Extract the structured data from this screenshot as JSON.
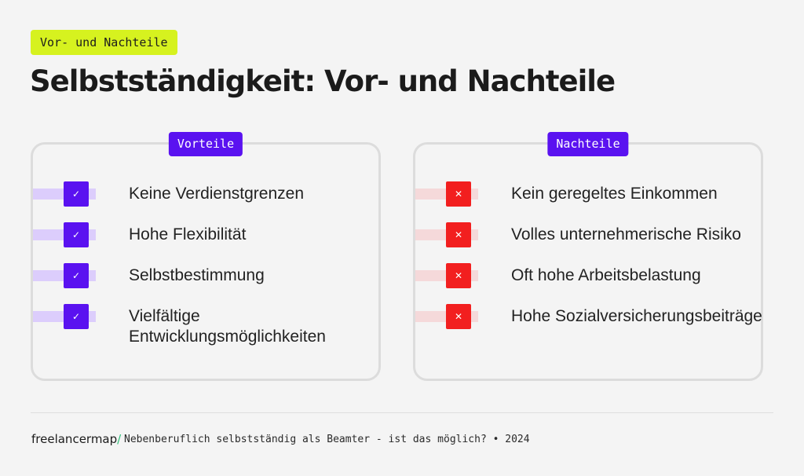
{
  "tag": "Vor- und Nachteile",
  "title": "Selbstständigkeit: Vor- und Nachteile",
  "pros": {
    "label": "Vorteile",
    "items": [
      "Keine Verdienstgrenzen",
      "Hohe Flexibilität",
      "Selbstbestimmung",
      "Vielfältige Entwicklungsmöglichkeiten"
    ]
  },
  "cons": {
    "label": "Nachteile",
    "items": [
      "Kein geregeltes Einkommen",
      "Volles unternehmerische Risiko",
      "Oft hohe Arbeitsbelastung",
      "Hohe Sozialversicherungsbeiträge"
    ]
  },
  "footer": {
    "brand": "freelancermap",
    "brand_slash": "/",
    "caption": "Nebenberuflich selbstständig als Beamter - ist das möglich? • 2024"
  },
  "icons": {
    "pro": "check-icon",
    "con": "cross-icon"
  },
  "colors": {
    "accent_purple": "#5a12f0",
    "accent_red": "#f21f1f",
    "tag_bg": "#d6f21f"
  }
}
